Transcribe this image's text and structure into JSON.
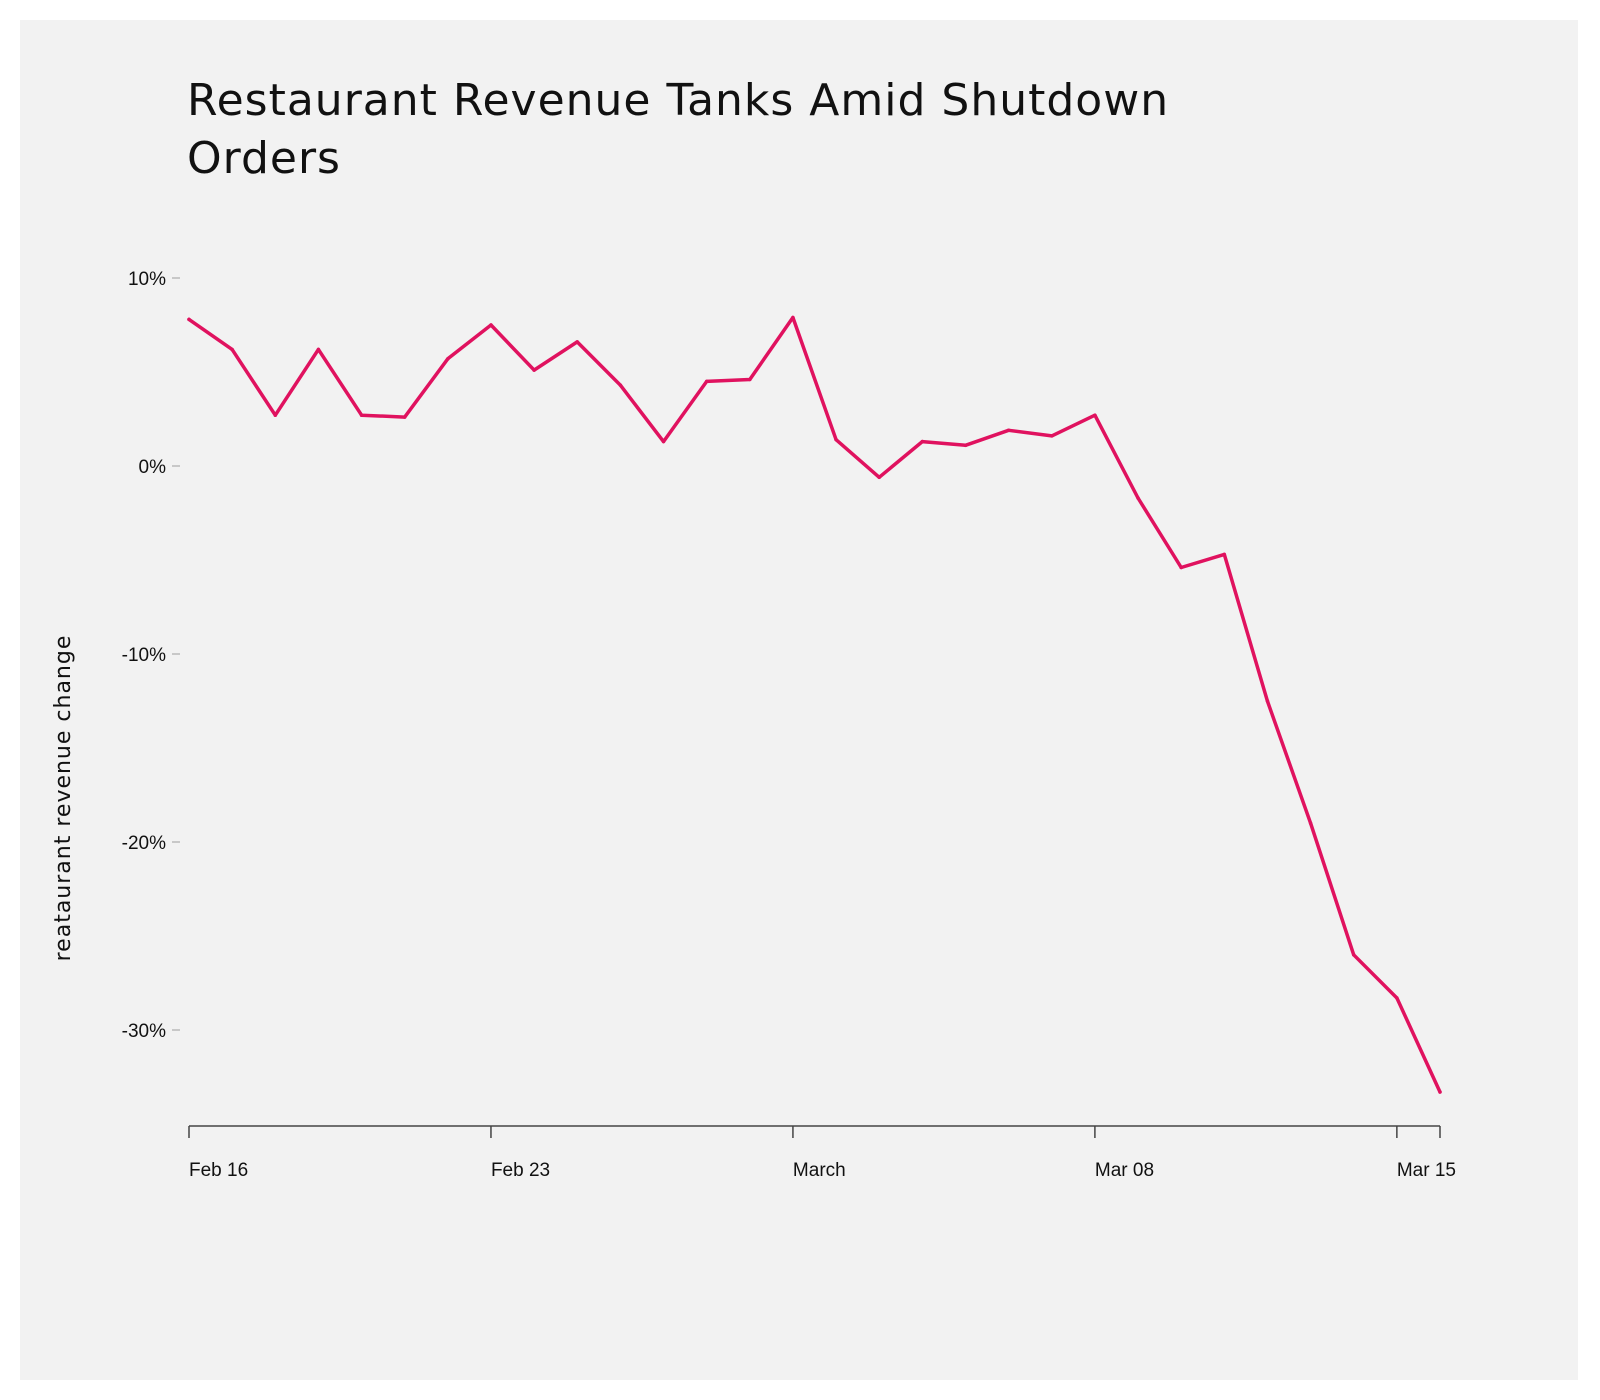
{
  "chart_data": {
    "type": "line",
    "title": "Restaurant Revenue Tanks Amid Shutdown Orders",
    "xlabel": "",
    "ylabel": "reataurant revenue change",
    "ylim": [
      -35,
      10
    ],
    "y_ticks": [
      10,
      0,
      -10,
      -20,
      -30
    ],
    "y_tick_labels": [
      "10%",
      "0%",
      "-10%",
      "-20%",
      "-30%"
    ],
    "x_ticks": [
      0,
      7,
      14,
      21,
      28
    ],
    "x_tick_labels": [
      "Feb 16",
      "Feb 23",
      "March",
      "Mar 08",
      "Mar 15"
    ],
    "x_range": [
      0,
      29
    ],
    "color": "#e0125f",
    "series": [
      {
        "name": "restaurant revenue change",
        "x": [
          0,
          1,
          2,
          3,
          4,
          5,
          6,
          7,
          8,
          9,
          10,
          11,
          12,
          13,
          14,
          15,
          16,
          17,
          18,
          19,
          20,
          21,
          22,
          23,
          24,
          25,
          26,
          27,
          28,
          29
        ],
        "values": [
          7.8,
          6.2,
          2.7,
          6.2,
          2.7,
          2.6,
          5.7,
          7.5,
          5.1,
          6.6,
          4.3,
          1.3,
          4.5,
          4.6,
          7.9,
          1.4,
          -0.6,
          1.3,
          1.1,
          1.9,
          1.6,
          2.7,
          -1.7,
          -5.4,
          -4.7,
          -12.5,
          -19.0,
          -26.0,
          -28.3,
          -33.3
        ]
      }
    ]
  }
}
